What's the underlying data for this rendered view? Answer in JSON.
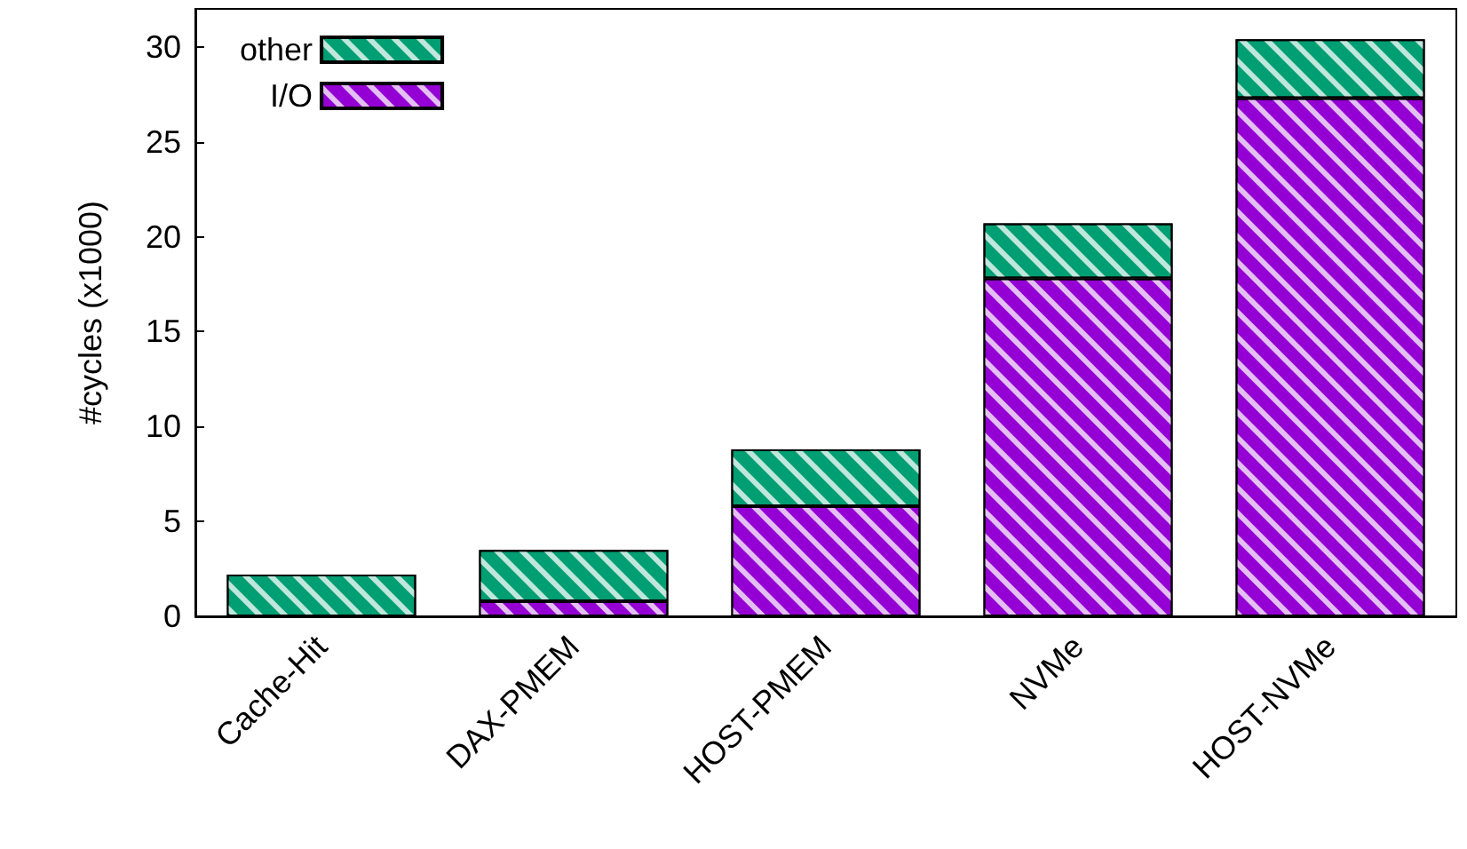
{
  "chart_data": {
    "type": "bar",
    "ylabel": "#cycles (x1000)",
    "categories": [
      "Cache-Hit",
      "DAX-PMEM",
      "HOST-PMEM",
      "NVMe",
      "HOST-NVMe"
    ],
    "stacked": true,
    "series": [
      {
        "name": "I/O",
        "color": "#9400d3",
        "values": [
          0,
          0.8,
          5.8,
          17.8,
          27.3
        ]
      },
      {
        "name": "other",
        "color": "#009e73",
        "values": [
          2.2,
          2.7,
          3.0,
          2.9,
          3.1
        ]
      }
    ],
    "ylim": [
      0,
      32
    ],
    "yticks": [
      0,
      5,
      10,
      15,
      20,
      25,
      30
    ],
    "grid": false,
    "legend": "top left"
  }
}
